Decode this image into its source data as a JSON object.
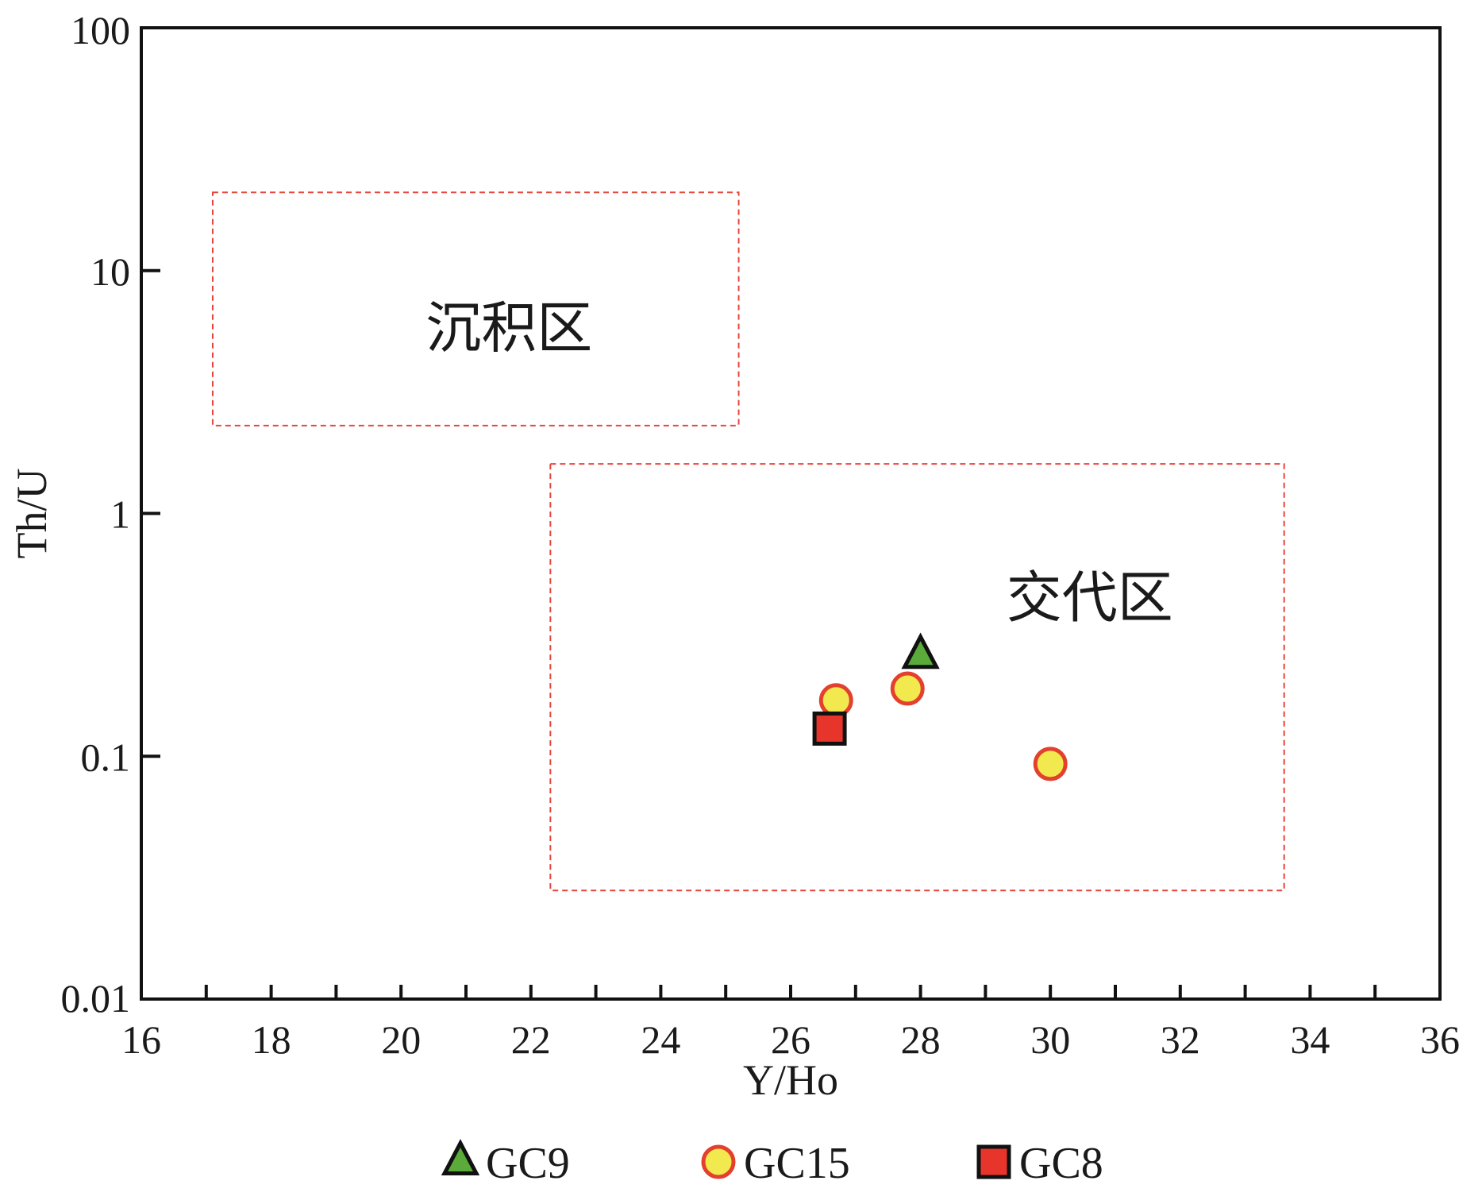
{
  "chart_data": {
    "type": "scatter",
    "xlabel": "Y/Ho",
    "ylabel": "Th/U",
    "xlim": [
      16,
      36
    ],
    "ylim": [
      0.01,
      100
    ],
    "yscale": "log",
    "grid": false,
    "x_ticks": [
      16,
      18,
      20,
      22,
      24,
      26,
      28,
      30,
      32,
      34,
      36
    ],
    "x_tick_labels": [
      "16",
      "18",
      "20",
      "22",
      "24",
      "26",
      "28",
      "30",
      "32",
      "34",
      "36"
    ],
    "y_ticks": [
      0.01,
      0.1,
      1,
      10,
      100
    ],
    "y_tick_labels": [
      "0.01",
      "0.1",
      "1",
      "10",
      "100"
    ],
    "regions": [
      {
        "label": "沉积区",
        "x_range": [
          17.1,
          25.2
        ],
        "y_range": [
          2.3,
          21
        ]
      },
      {
        "label": "交代区",
        "x_range": [
          22.3,
          33.6
        ],
        "y_range": [
          0.028,
          1.6
        ]
      }
    ],
    "region_style": {
      "stroke": "#e8453c",
      "dash": true
    },
    "legend_placement": "bottom",
    "series": [
      {
        "name": "GC9",
        "marker": "triangle",
        "fill": "#5aab3a",
        "stroke": "#111111",
        "points": [
          {
            "x": 28.0,
            "y": 0.26
          }
        ]
      },
      {
        "name": "GC15",
        "marker": "circle",
        "fill": "#f2e94e",
        "stroke": "#e3402e",
        "points": [
          {
            "x": 26.7,
            "y": 0.17
          },
          {
            "x": 27.8,
            "y": 0.19
          },
          {
            "x": 30.0,
            "y": 0.093
          }
        ]
      },
      {
        "name": "GC8",
        "marker": "square",
        "fill": "#e8352b",
        "stroke": "#111111",
        "points": [
          {
            "x": 26.6,
            "y": 0.13
          }
        ]
      }
    ]
  }
}
